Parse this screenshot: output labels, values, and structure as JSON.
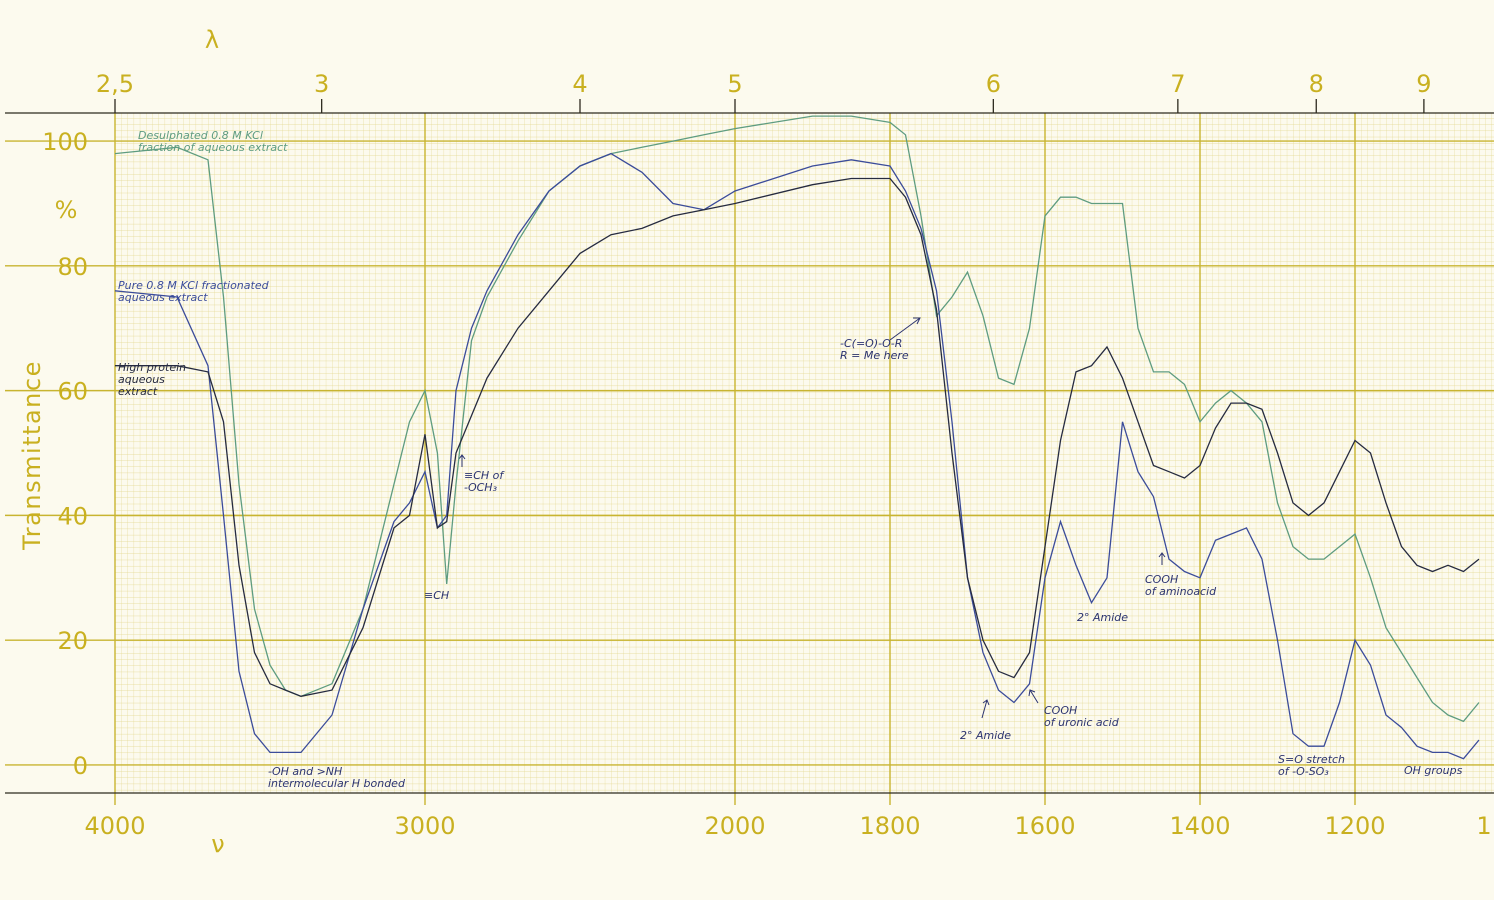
{
  "chart_data": {
    "type": "line",
    "y_label": "Transmittance",
    "y_unit": "%",
    "x_label": "ν",
    "x2_label": "λ",
    "xlim": [
      4000,
      1000
    ],
    "xscale_break": 2000,
    "xticks": [
      4000,
      3000,
      2000,
      1800,
      1600,
      1400,
      1200,
      {
        "value": 1000,
        "label": "1"
      }
    ],
    "x2ticks": [
      {
        "value": 2.5,
        "label": "2,5"
      },
      3,
      4,
      5,
      6,
      7,
      8,
      9
    ],
    "ylim": [
      -4.5,
      104.5
    ],
    "yticks": [
      0,
      20,
      40,
      60,
      80,
      100
    ],
    "grid": true,
    "x": [
      4000,
      3800,
      3700,
      3650,
      3600,
      3550,
      3500,
      3450,
      3400,
      3300,
      3200,
      3100,
      3050,
      3000,
      2960,
      2930,
      2900,
      2850,
      2800,
      2700,
      2600,
      2500,
      2400,
      2300,
      2200,
      2100,
      2000,
      1900,
      1850,
      1800,
      1780,
      1760,
      1740,
      1720,
      1700,
      1680,
      1660,
      1640,
      1620,
      1600,
      1580,
      1560,
      1540,
      1520,
      1500,
      1480,
      1460,
      1440,
      1420,
      1400,
      1380,
      1360,
      1340,
      1320,
      1300,
      1280,
      1260,
      1240,
      1220,
      1200,
      1180,
      1160,
      1140,
      1120,
      1100,
      1080,
      1060,
      1040
    ],
    "series": [
      {
        "name": "Desulphated 0.8 M KCl fraction of aqueous extract",
        "color": "#5e9c80",
        "values": [
          98,
          99,
          97,
          75,
          45,
          25,
          16,
          12,
          11,
          13,
          25,
          45,
          55,
          60,
          50,
          29,
          45,
          68,
          75,
          84,
          92,
          96,
          98,
          99,
          100,
          101,
          102,
          104,
          104,
          103,
          101,
          88,
          72,
          75,
          79,
          72,
          62,
          61,
          70,
          88,
          91,
          91,
          90,
          90,
          90,
          70,
          63,
          63,
          61,
          55,
          58,
          60,
          58,
          55,
          42,
          35,
          33,
          33,
          35,
          37,
          30,
          22,
          18,
          14,
          10,
          8,
          7,
          10
        ]
      },
      {
        "name": "Pure 0.8 M KCl fractionated aqueous extract",
        "color": "#3b4c9a",
        "values": [
          76,
          75,
          64,
          40,
          15,
          5,
          2,
          2,
          2,
          8,
          25,
          39,
          42,
          47,
          38,
          40,
          60,
          70,
          76,
          85,
          92,
          96,
          98,
          95,
          90,
          89,
          92,
          96,
          97,
          96,
          92,
          86,
          76,
          55,
          30,
          18,
          12,
          10,
          13,
          30,
          39,
          32,
          26,
          30,
          55,
          47,
          43,
          33,
          31,
          30,
          36,
          37,
          38,
          33,
          20,
          5,
          3,
          3,
          10,
          20,
          16,
          8,
          6,
          3,
          2,
          2,
          1,
          4
        ]
      },
      {
        "name": "High protein aqueous extract",
        "color": "#262b40",
        "values": [
          64,
          64,
          63,
          55,
          32,
          18,
          13,
          12,
          11,
          12,
          22,
          38,
          40,
          53,
          38,
          39,
          50,
          56,
          62,
          70,
          76,
          82,
          85,
          86,
          88,
          89,
          90,
          93,
          94,
          94,
          91,
          85,
          73,
          50,
          30,
          20,
          15,
          14,
          18,
          35,
          52,
          63,
          64,
          67,
          62,
          55,
          48,
          47,
          46,
          48,
          54,
          58,
          58,
          57,
          50,
          42,
          40,
          42,
          47,
          52,
          50,
          42,
          35,
          32,
          31,
          32,
          31,
          33
        ]
      }
    ],
    "annotations": [
      [
        "≡CH"
      ],
      [
        "≡CH of",
        "-OCH₃"
      ],
      [
        "-OH and >NH",
        "intermolecular H bonded"
      ],
      [
        "-C(=O)-O-R",
        "R = Me here"
      ],
      [
        "2° Amide"
      ],
      [
        "COOH",
        "of uronic acid"
      ],
      [
        "2° Amide"
      ],
      [
        "COOH",
        "of aminoacid"
      ],
      [
        "S=O stretch",
        "of -O-SO₃"
      ],
      [
        "OH groups"
      ]
    ]
  }
}
